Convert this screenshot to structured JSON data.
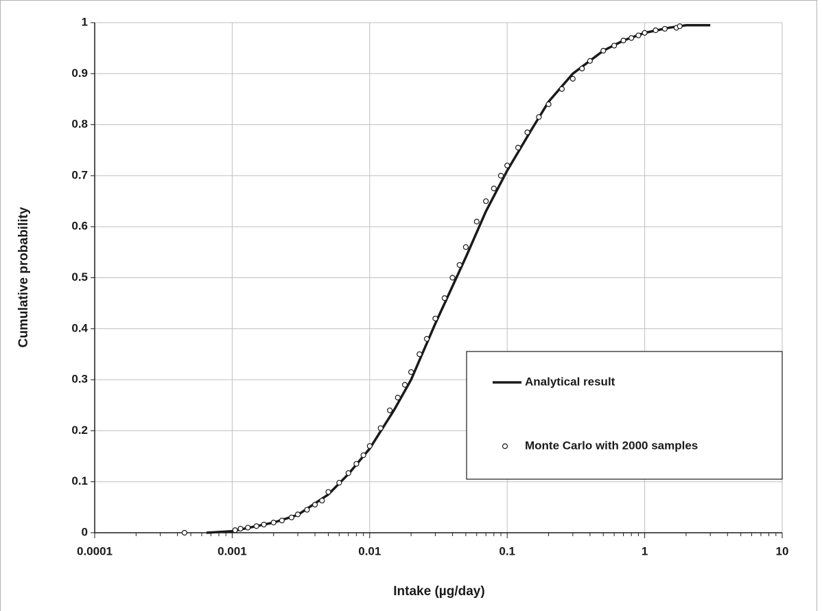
{
  "chart_data": {
    "type": "line",
    "xlabel": "Intake (µg/day)",
    "ylabel": "Cumulative probability",
    "xscale": "log",
    "xlim": [
      0.0001,
      10
    ],
    "xticks": [
      0.0001,
      0.001,
      0.01,
      0.1,
      1,
      10
    ],
    "ylim": [
      0,
      1
    ],
    "yticks": [
      0,
      0.1,
      0.2,
      0.3,
      0.4,
      0.5,
      0.6,
      0.7,
      0.8,
      0.9,
      1
    ],
    "grid": true,
    "legend": "lower right",
    "series": [
      {
        "name": "Analytical result",
        "type": "line",
        "color": "#1a1a1a",
        "x": [
          0.00065,
          0.001,
          0.002,
          0.003,
          0.005,
          0.007,
          0.01,
          0.015,
          0.02,
          0.03,
          0.05,
          0.07,
          0.1,
          0.15,
          0.2,
          0.3,
          0.5,
          0.7,
          1,
          1.5,
          2,
          3
        ],
        "y": [
          0,
          0.003,
          0.02,
          0.035,
          0.075,
          0.115,
          0.165,
          0.24,
          0.3,
          0.41,
          0.54,
          0.63,
          0.71,
          0.79,
          0.845,
          0.9,
          0.945,
          0.965,
          0.98,
          0.99,
          0.995,
          0.995
        ]
      },
      {
        "name": "Monte Carlo with 2000 samples",
        "type": "scatter",
        "color": "#1a1a1a",
        "x": [
          0.00045,
          0.00105,
          0.00115,
          0.0013,
          0.0015,
          0.0017,
          0.002,
          0.0023,
          0.0027,
          0.003,
          0.0035,
          0.004,
          0.0045,
          0.005,
          0.006,
          0.007,
          0.008,
          0.009,
          0.01,
          0.012,
          0.014,
          0.016,
          0.018,
          0.02,
          0.023,
          0.026,
          0.03,
          0.035,
          0.04,
          0.045,
          0.05,
          0.06,
          0.07,
          0.08,
          0.09,
          0.1,
          0.12,
          0.14,
          0.17,
          0.2,
          0.25,
          0.3,
          0.35,
          0.4,
          0.5,
          0.6,
          0.7,
          0.8,
          0.9,
          1.0,
          1.2,
          1.4,
          1.7,
          1.8
        ],
        "y": [
          0,
          0.005,
          0.008,
          0.01,
          0.013,
          0.016,
          0.02,
          0.024,
          0.03,
          0.036,
          0.045,
          0.055,
          0.063,
          0.08,
          0.098,
          0.117,
          0.135,
          0.152,
          0.17,
          0.205,
          0.24,
          0.265,
          0.29,
          0.315,
          0.35,
          0.38,
          0.42,
          0.46,
          0.5,
          0.525,
          0.56,
          0.61,
          0.65,
          0.675,
          0.7,
          0.72,
          0.755,
          0.785,
          0.815,
          0.84,
          0.87,
          0.89,
          0.91,
          0.925,
          0.945,
          0.955,
          0.965,
          0.97,
          0.975,
          0.98,
          0.985,
          0.988,
          0.99,
          0.993
        ]
      }
    ]
  }
}
